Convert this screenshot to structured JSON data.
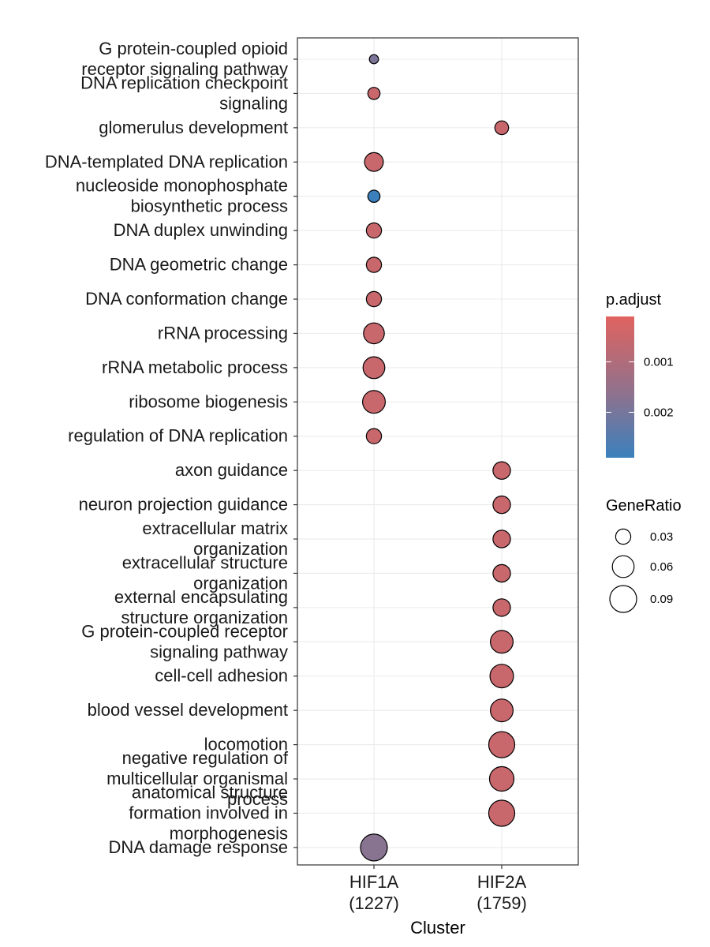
{
  "chart_data": {
    "type": "scatter",
    "xlabel": "Cluster",
    "clusters": [
      {
        "name": "HIF1A",
        "count": "(1227)"
      },
      {
        "name": "HIF2A",
        "count": "(1759)"
      }
    ],
    "terms": [
      {
        "lines": [
          "G protein-coupled opioid",
          "receptor signaling pathway"
        ]
      },
      {
        "lines": [
          "DNA replication checkpoint",
          "signaling"
        ]
      },
      {
        "lines": [
          "glomerulus development"
        ]
      },
      {
        "lines": [
          "DNA-templated DNA replication"
        ]
      },
      {
        "lines": [
          "nucleoside monophosphate",
          "biosynthetic process"
        ]
      },
      {
        "lines": [
          "DNA duplex unwinding"
        ]
      },
      {
        "lines": [
          "DNA geometric change"
        ]
      },
      {
        "lines": [
          "DNA conformation change"
        ]
      },
      {
        "lines": [
          "rRNA processing"
        ]
      },
      {
        "lines": [
          "rRNA metabolic process"
        ]
      },
      {
        "lines": [
          "ribosome biogenesis"
        ]
      },
      {
        "lines": [
          "regulation of DNA replication"
        ]
      },
      {
        "lines": [
          "axon guidance"
        ]
      },
      {
        "lines": [
          "neuron projection guidance"
        ]
      },
      {
        "lines": [
          "extracellular matrix",
          "organization"
        ]
      },
      {
        "lines": [
          "extracellular structure",
          "organization"
        ]
      },
      {
        "lines": [
          "external encapsulating",
          "structure organization"
        ]
      },
      {
        "lines": [
          "G protein-coupled receptor",
          "signaling pathway"
        ]
      },
      {
        "lines": [
          "cell-cell adhesion"
        ]
      },
      {
        "lines": [
          "blood vessel development"
        ]
      },
      {
        "lines": [
          "locomotion"
        ]
      },
      {
        "lines": [
          "negative regulation of",
          "multicellular organismal",
          "process"
        ]
      },
      {
        "lines": [
          "anatomical structure",
          "formation involved in",
          "morphogenesis"
        ]
      },
      {
        "lines": [
          "DNA damage response"
        ]
      }
    ],
    "points": [
      {
        "term": 0,
        "cluster": 0,
        "gene_ratio": 0.012,
        "p_adjust": 0.0018
      },
      {
        "term": 1,
        "cluster": 0,
        "gene_ratio": 0.02,
        "p_adjust": 0.0005
      },
      {
        "term": 2,
        "cluster": 1,
        "gene_ratio": 0.025,
        "p_adjust": 0.0005
      },
      {
        "term": 3,
        "cluster": 0,
        "gene_ratio": 0.045,
        "p_adjust": 0.0005
      },
      {
        "term": 4,
        "cluster": 0,
        "gene_ratio": 0.02,
        "p_adjust": 0.0029
      },
      {
        "term": 5,
        "cluster": 0,
        "gene_ratio": 0.03,
        "p_adjust": 0.0005
      },
      {
        "term": 6,
        "cluster": 0,
        "gene_ratio": 0.03,
        "p_adjust": 0.0005
      },
      {
        "term": 7,
        "cluster": 0,
        "gene_ratio": 0.03,
        "p_adjust": 0.0005
      },
      {
        "term": 8,
        "cluster": 0,
        "gene_ratio": 0.055,
        "p_adjust": 0.0005
      },
      {
        "term": 9,
        "cluster": 0,
        "gene_ratio": 0.06,
        "p_adjust": 0.0005
      },
      {
        "term": 10,
        "cluster": 0,
        "gene_ratio": 0.065,
        "p_adjust": 0.0005
      },
      {
        "term": 11,
        "cluster": 0,
        "gene_ratio": 0.03,
        "p_adjust": 0.0005
      },
      {
        "term": 12,
        "cluster": 1,
        "gene_ratio": 0.04,
        "p_adjust": 0.0005
      },
      {
        "term": 13,
        "cluster": 1,
        "gene_ratio": 0.04,
        "p_adjust": 0.0005
      },
      {
        "term": 14,
        "cluster": 1,
        "gene_ratio": 0.04,
        "p_adjust": 0.0005
      },
      {
        "term": 15,
        "cluster": 1,
        "gene_ratio": 0.04,
        "p_adjust": 0.0005
      },
      {
        "term": 16,
        "cluster": 1,
        "gene_ratio": 0.04,
        "p_adjust": 0.0005
      },
      {
        "term": 17,
        "cluster": 1,
        "gene_ratio": 0.065,
        "p_adjust": 0.0005
      },
      {
        "term": 18,
        "cluster": 1,
        "gene_ratio": 0.07,
        "p_adjust": 0.0005
      },
      {
        "term": 19,
        "cluster": 1,
        "gene_ratio": 0.065,
        "p_adjust": 0.0005
      },
      {
        "term": 20,
        "cluster": 1,
        "gene_ratio": 0.085,
        "p_adjust": 0.0005
      },
      {
        "term": 21,
        "cluster": 1,
        "gene_ratio": 0.075,
        "p_adjust": 0.0005
      },
      {
        "term": 22,
        "cluster": 1,
        "gene_ratio": 0.085,
        "p_adjust": 0.0005
      },
      {
        "term": 23,
        "cluster": 0,
        "gene_ratio": 0.09,
        "p_adjust": 0.0016
      }
    ],
    "color_legend": {
      "title": "p.adjust",
      "range": [
        0.0001,
        0.0029
      ],
      "low_color": "#e0635f",
      "high_color": "#3b80bd",
      "ticks": [
        {
          "value": 0.001,
          "label": "0.001"
        },
        {
          "value": 0.002,
          "label": "0.002"
        }
      ]
    },
    "size_legend": {
      "title": "GeneRatio",
      "ticks": [
        {
          "value": 0.03,
          "label": "0.03"
        },
        {
          "value": 0.06,
          "label": "0.06"
        },
        {
          "value": 0.09,
          "label": "0.09"
        }
      ]
    },
    "size_range": [
      0.005,
      0.1
    ],
    "grid": true
  }
}
